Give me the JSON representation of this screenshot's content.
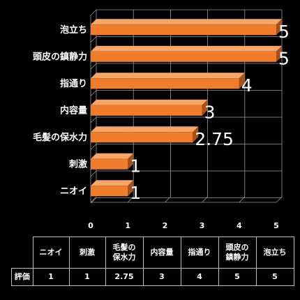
{
  "chart_data": {
    "type": "bar",
    "orientation": "horizontal",
    "three_d": true,
    "categories": [
      "ニオイ",
      "刺激",
      "毛髪の保水力",
      "内容量",
      "指通り",
      "頭皮の鎮静力",
      "泡立ち"
    ],
    "table_headers": [
      "ニオイ",
      "刺激",
      "毛髪の\n保水力",
      "内容量",
      "指通り",
      "頭皮の\n鎮静力",
      "泡立ち"
    ],
    "series": [
      {
        "name": "評価",
        "values": [
          1,
          1,
          2.75,
          3,
          4,
          5,
          5
        ]
      }
    ],
    "value_labels": [
      "1",
      "1",
      "2.75",
      "3",
      "4",
      "5",
      "5"
    ],
    "table_values": [
      "1",
      "1",
      "2.75",
      "3",
      "4",
      "5",
      "5"
    ],
    "xlim": [
      0,
      5
    ],
    "x_ticks": [
      "0",
      "1",
      "2",
      "3",
      "4",
      "5"
    ],
    "grid": true,
    "legend": "data-table-bottom",
    "colors": {
      "background": "#000000",
      "bar_front": "#ef7d2c",
      "bar_top": "#f6a669",
      "bar_side": "#a8501a",
      "grid": "#9a9a9a",
      "text": "#ffffff"
    }
  }
}
